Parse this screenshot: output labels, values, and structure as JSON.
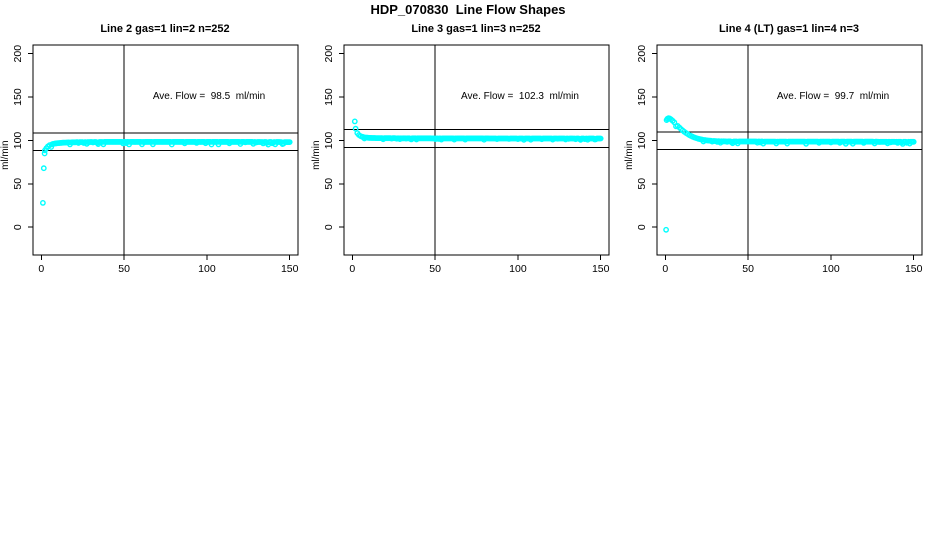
{
  "figure": {
    "title": "HDP_070830  Line Flow Shapes",
    "background": "#ffffff",
    "point_color": "#00ffff",
    "line_color": "#000000"
  },
  "chart_data": [
    {
      "type": "scatter",
      "title": "Line 2 gas=1 lin=2 n=252",
      "annotation": "Ave. Flow =  98.5  ml/min",
      "ave_flow_ml_min": 98.5,
      "n": 252,
      "xlim": [
        -5,
        155
      ],
      "ylim": [
        -32,
        210
      ],
      "xticks": [
        0,
        50,
        100,
        150
      ],
      "yticks": [
        0,
        50,
        100,
        150,
        200
      ],
      "ylabel": "ml/min",
      "vline_x": 50,
      "hlines": [
        88.7,
        108.4
      ],
      "point_step": 0.6,
      "jitter": 3,
      "points": [
        [
          1,
          28
        ],
        [
          1.5,
          68
        ],
        [
          2,
          85
        ],
        [
          2.2,
          88.5
        ],
        [
          3,
          91
        ],
        [
          4,
          93.2
        ],
        [
          5,
          94.5
        ],
        [
          6,
          95.4
        ],
        [
          8,
          96.4
        ],
        [
          10,
          96.9
        ],
        [
          13,
          97.4
        ],
        [
          16,
          97.7
        ],
        [
          20,
          97.9
        ],
        [
          25,
          98.1
        ],
        [
          30,
          98.2
        ],
        [
          40,
          98.3
        ],
        [
          50,
          98.3
        ],
        [
          65,
          98.3
        ],
        [
          80,
          98.3
        ],
        [
          95,
          98.3
        ],
        [
          110,
          98.3
        ],
        [
          125,
          98.3
        ],
        [
          140,
          98.2
        ],
        [
          150,
          98.1
        ]
      ],
      "outliers": []
    },
    {
      "type": "scatter",
      "title": "Line 3 gas=1 lin=3 n=252",
      "annotation": "Ave. Flow =  102.3  ml/min",
      "ave_flow_ml_min": 102.3,
      "n": 252,
      "xlim": [
        -5,
        155
      ],
      "ylim": [
        -32,
        210
      ],
      "xticks": [
        0,
        50,
        100,
        150
      ],
      "yticks": [
        0,
        50,
        100,
        150,
        200
      ],
      "ylabel": "ml/min",
      "vline_x": 50,
      "hlines": [
        92.1,
        112.5
      ],
      "point_step": 0.6,
      "jitter": 1.5,
      "points": [
        [
          1.5,
          122
        ],
        [
          2,
          113.5
        ],
        [
          3,
          108.5
        ],
        [
          4,
          106.3
        ],
        [
          5,
          105
        ],
        [
          6,
          104.2
        ],
        [
          8,
          103.4
        ],
        [
          10,
          103
        ],
        [
          13,
          102.8
        ],
        [
          16,
          102.7
        ],
        [
          20,
          102.6
        ],
        [
          25,
          102.55
        ],
        [
          30,
          102.5
        ],
        [
          40,
          102.45
        ],
        [
          55,
          102.4
        ],
        [
          70,
          102.35
        ],
        [
          85,
          102.3
        ],
        [
          100,
          102.3
        ],
        [
          115,
          102.25
        ],
        [
          130,
          102.2
        ],
        [
          150,
          102.2
        ]
      ],
      "outliers": []
    },
    {
      "type": "scatter",
      "title": "Line 4 (LT) gas=1 lin=4 n=3",
      "annotation": "Ave. Flow =  99.7  ml/min",
      "ave_flow_ml_min": 99.7,
      "n": 3,
      "xlim": [
        -5,
        155
      ],
      "ylim": [
        -32,
        210
      ],
      "xticks": [
        0,
        50,
        100,
        150
      ],
      "yticks": [
        0,
        50,
        100,
        150,
        200
      ],
      "ylabel": "ml/min",
      "vline_x": 50,
      "hlines": [
        89.7,
        109.7
      ],
      "point_step": 0.6,
      "jitter": 2.5,
      "points": [
        [
          0.8,
          123.5
        ],
        [
          1.3,
          125
        ],
        [
          2,
          125.8
        ],
        [
          2.7,
          125.3
        ],
        [
          3.5,
          124.3
        ],
        [
          4.5,
          122.7
        ],
        [
          5.5,
          120.8
        ],
        [
          6.5,
          118.8
        ],
        [
          7.5,
          116.8
        ],
        [
          8.5,
          114.9
        ],
        [
          9.5,
          113.1
        ],
        [
          10.5,
          111.5
        ],
        [
          11.5,
          110
        ],
        [
          12.5,
          108.6
        ],
        [
          13.5,
          107.4
        ],
        [
          14.5,
          106.2
        ],
        [
          15.5,
          105.2
        ],
        [
          16.5,
          104.3
        ],
        [
          17.5,
          103.5
        ],
        [
          18.5,
          102.8
        ],
        [
          19.5,
          102.2
        ],
        [
          21,
          101.4
        ],
        [
          23,
          100.7
        ],
        [
          25,
          100.1
        ],
        [
          27,
          99.7
        ],
        [
          29,
          99.4
        ],
        [
          32,
          99.1
        ],
        [
          36,
          98.95
        ],
        [
          40,
          98.85
        ],
        [
          45,
          98.8
        ],
        [
          55,
          98.75
        ],
        [
          70,
          98.7
        ],
        [
          85,
          98.65
        ],
        [
          100,
          98.6
        ],
        [
          115,
          98.55
        ],
        [
          130,
          98.5
        ],
        [
          150,
          98.45
        ]
      ],
      "outliers": [
        [
          0.5,
          -3
        ]
      ]
    }
  ]
}
